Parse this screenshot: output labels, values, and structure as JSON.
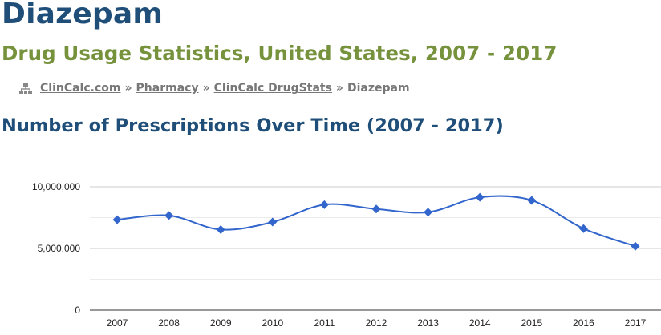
{
  "page": {
    "drug_name": "Diazepam",
    "subtitle": "Drug Usage Statistics, United States, 2007 - 2017",
    "chart_heading": "Number of Prescriptions Over Time (2007 - 2017)"
  },
  "breadcrumb": {
    "icon": "sitemap-icon",
    "items": [
      {
        "label": "ClinCalc.com",
        "link": true
      },
      {
        "label": "Pharmacy",
        "link": true
      },
      {
        "label": "ClinCalc DrugStats",
        "link": true
      },
      {
        "label": "Diazepam",
        "link": false
      }
    ],
    "separator": "»"
  },
  "colors": {
    "title": "#1f4e79",
    "subtitle": "#76923c",
    "breadcrumb": "#777777",
    "series": "#3366cc",
    "grid": "#cccccc"
  },
  "chart_data": {
    "type": "line",
    "x": [
      "2007",
      "2008",
      "2009",
      "2010",
      "2011",
      "2012",
      "2013",
      "2014",
      "2015",
      "2016",
      "2017"
    ],
    "series": [
      {
        "values": [
          7330000,
          7670000,
          6530000,
          7140000,
          8550000,
          8200000,
          7940000,
          9150000,
          8900000,
          6610000,
          5180000
        ]
      }
    ],
    "yticks": [
      0,
      5000000,
      10000000
    ],
    "ytick_labels": [
      "0",
      "5,000,000",
      "10,000,000"
    ],
    "ylim": [
      0,
      10000000
    ],
    "grid": true,
    "legend": "none",
    "marker": "diamond",
    "smooth": true
  }
}
